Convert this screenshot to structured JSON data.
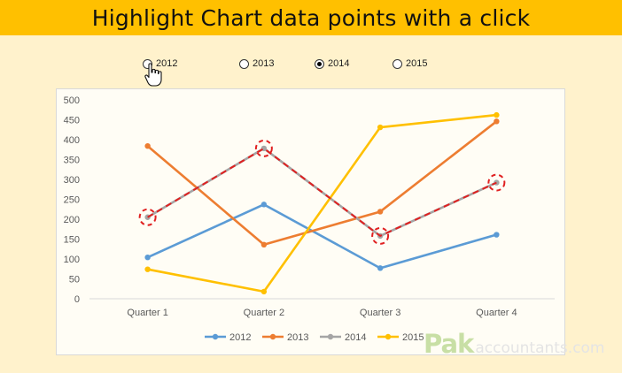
{
  "banner": {
    "title": "Highlight Chart data points with a click"
  },
  "selector": {
    "options": [
      {
        "label": "2012",
        "checked": false
      },
      {
        "label": "2013",
        "checked": false
      },
      {
        "label": "2014",
        "checked": true
      },
      {
        "label": "2015",
        "checked": false
      }
    ]
  },
  "watermark": {
    "pak": "Pak",
    "accountants": "accountants.com"
  },
  "chart_data": {
    "type": "line",
    "categories": [
      "Quarter 1",
      "Quarter 2",
      "Quarter 3",
      "Quarter 4"
    ],
    "ylim": [
      0,
      500
    ],
    "yticks": [
      0,
      50,
      100,
      150,
      200,
      250,
      300,
      350,
      400,
      450,
      500
    ],
    "grid": false,
    "legend": "bottom",
    "series": [
      {
        "name": "2012",
        "color": "#5b9bd5",
        "values": [
          104,
          237,
          77,
          161
        ]
      },
      {
        "name": "2013",
        "color": "#ed7d31",
        "values": [
          384,
          136,
          219,
          446
        ]
      },
      {
        "name": "2014",
        "color": "#a5a5a5",
        "values": [
          205,
          378,
          158,
          292
        ]
      },
      {
        "name": "2015",
        "color": "#ffc000",
        "values": [
          74,
          18,
          431,
          462
        ]
      }
    ],
    "highlight": {
      "series": "2014",
      "line_color": "#e02020",
      "style": "dashed"
    }
  }
}
